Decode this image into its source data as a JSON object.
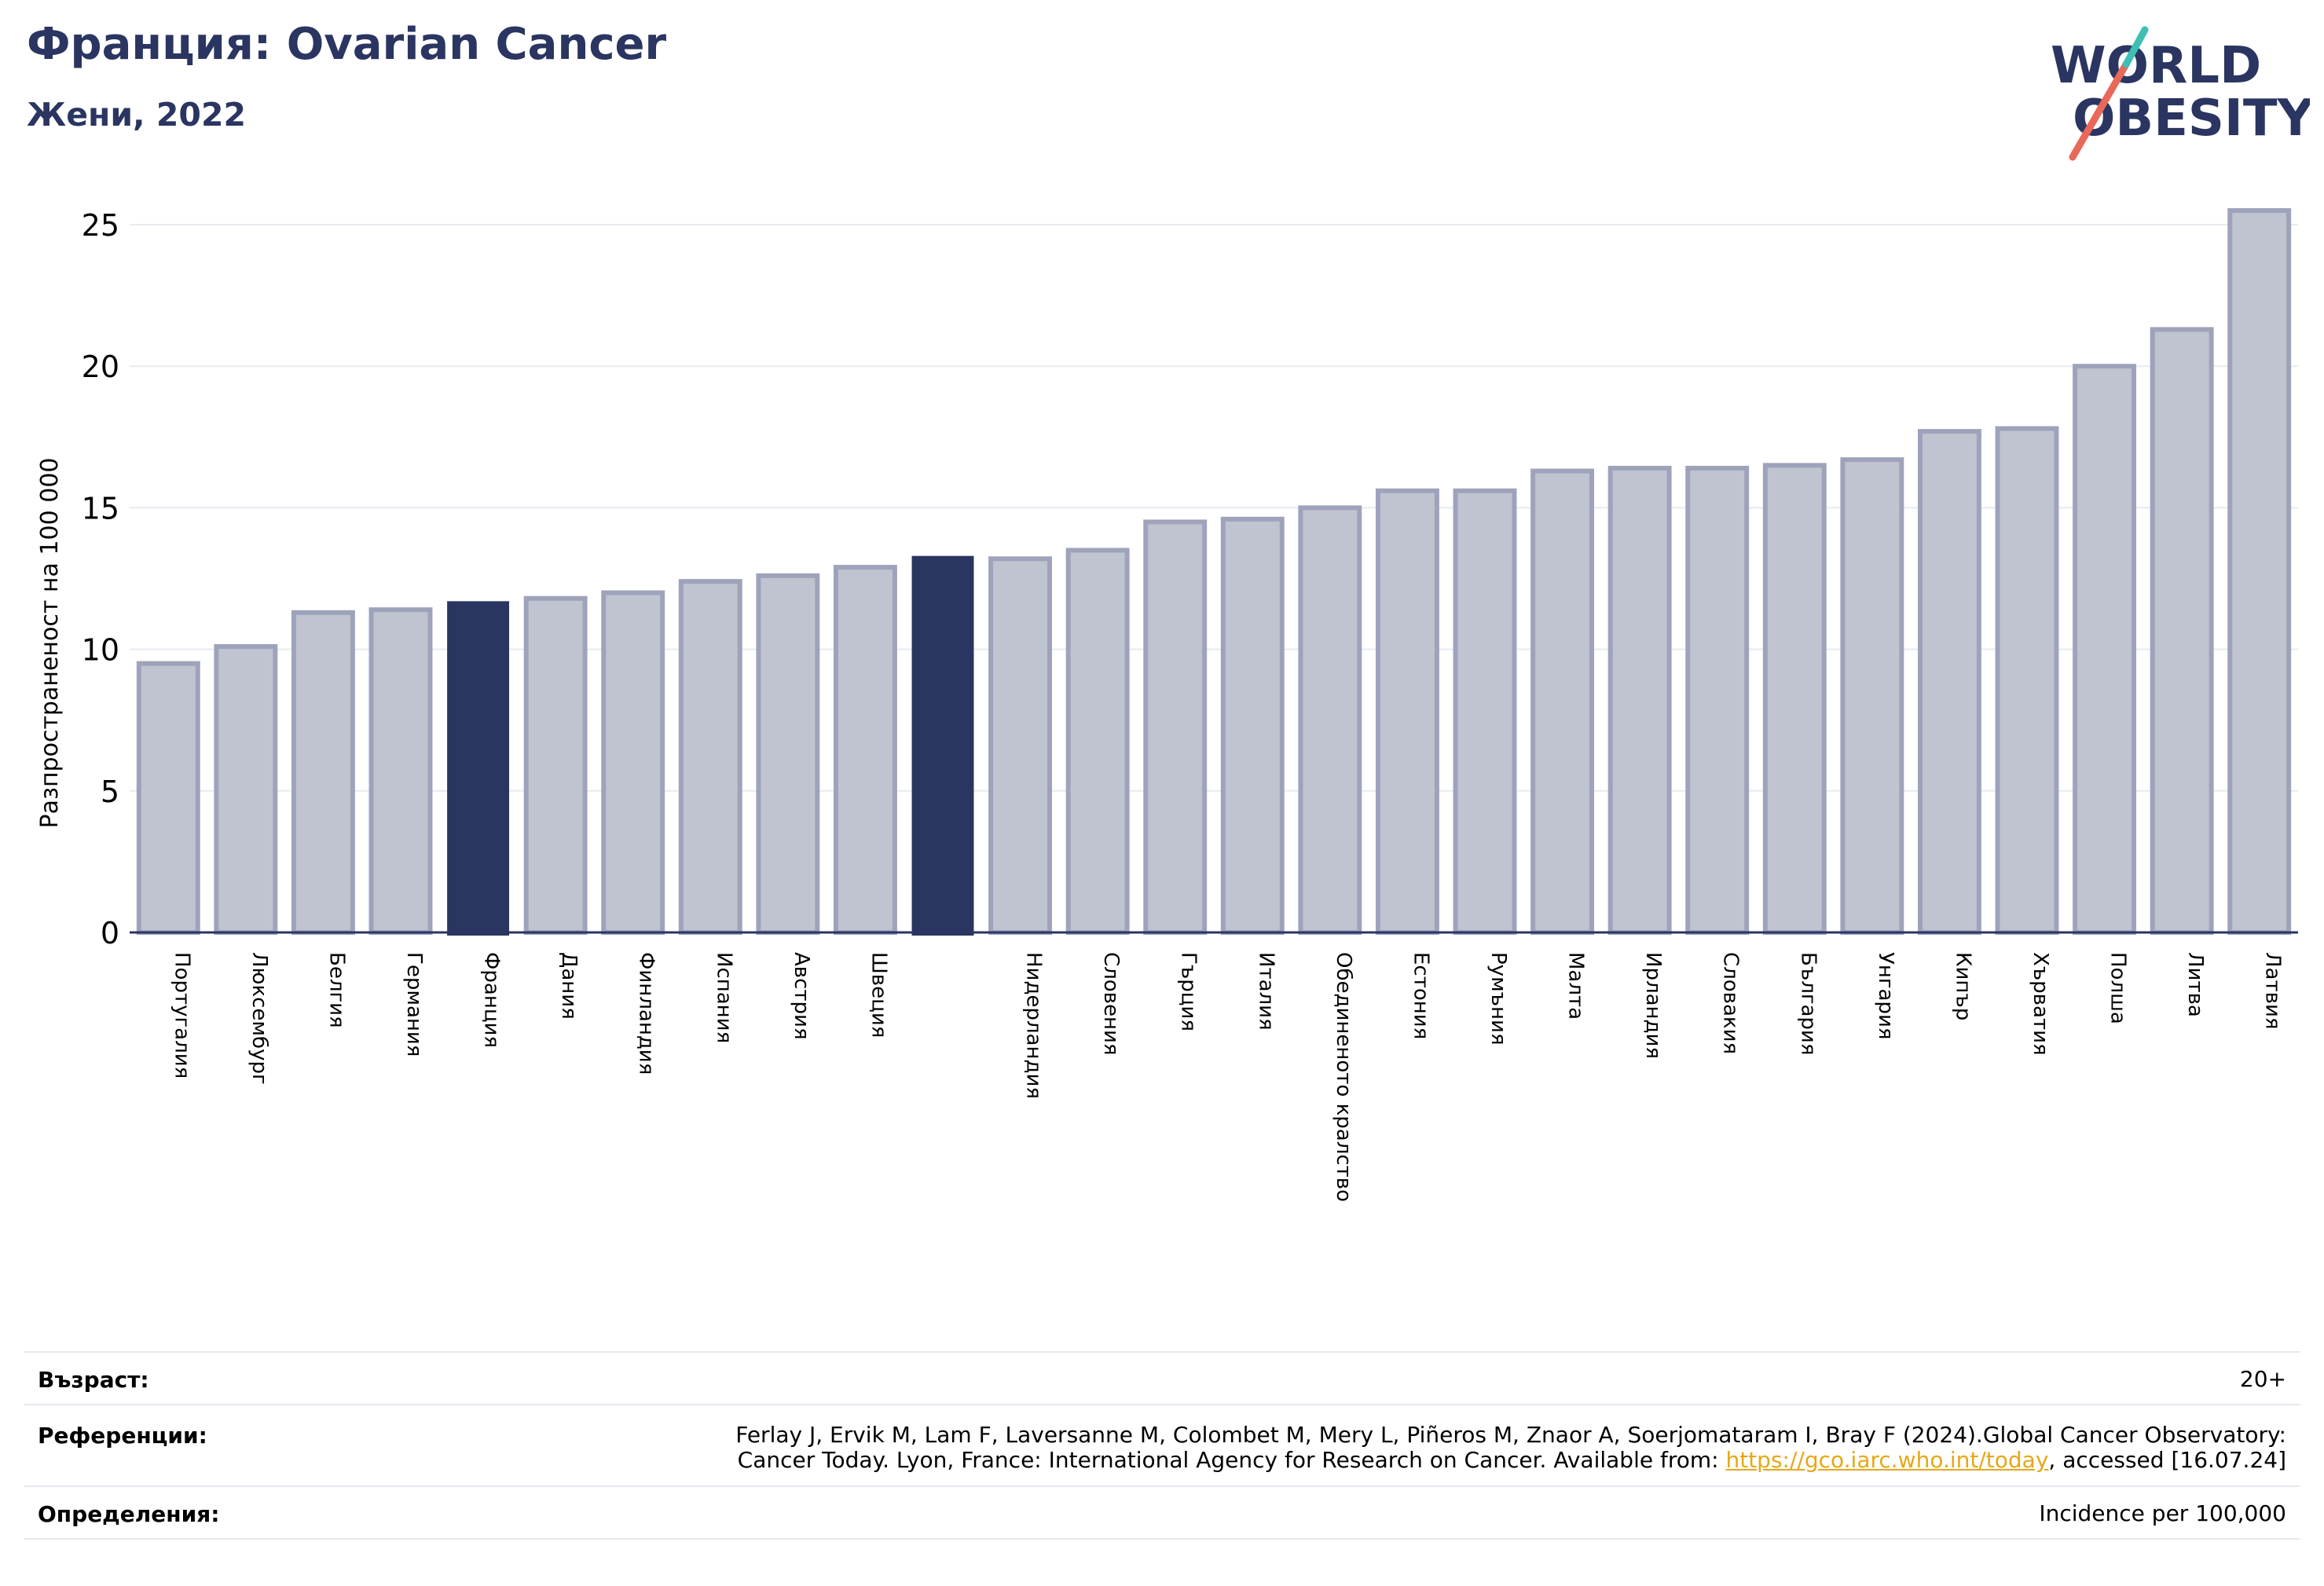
{
  "header": {
    "title": "Франция: Ovarian Cancer",
    "subtitle": "Жени, 2022"
  },
  "logo": {
    "line1": "WORLD",
    "line2": "OBESITY",
    "colors": {
      "text": "#2a3561",
      "slash_red": "#e8685a",
      "slash_teal": "#3dbfb4"
    }
  },
  "chart_data": {
    "type": "bar",
    "title": "Франция: Ovarian Cancer",
    "subtitle": "Жени, 2022",
    "xlabel": "",
    "ylabel": "Разпространеност на 100 000",
    "ylim": [
      0,
      26
    ],
    "yticks": [
      0,
      5,
      10,
      15,
      20,
      25
    ],
    "grid": true,
    "legend": "none",
    "categories": [
      "Португалия",
      "Люксембург",
      "Белгия",
      "Германия",
      "Франция",
      "Дания",
      "Финландия",
      "Испания",
      "Австрия",
      "Швеция",
      "",
      "Нидерландия",
      "Словения",
      "Гърция",
      "Италия",
      "Обединеното кралство",
      "Естония",
      "Румъния",
      "Малта",
      "Ирландия",
      "Словакия",
      "България",
      "Унгария",
      "Кипър",
      "Хърватия",
      "Полша",
      "Литва",
      "Латвия"
    ],
    "values": [
      9.5,
      10.1,
      11.3,
      11.4,
      11.7,
      11.8,
      12.0,
      12.4,
      12.6,
      12.9,
      13.3,
      13.2,
      13.5,
      14.5,
      14.6,
      15.0,
      15.6,
      15.6,
      16.3,
      16.4,
      16.4,
      16.5,
      16.7,
      17.7,
      17.8,
      20.0,
      21.3,
      25.5
    ],
    "highlight_indices": [
      4,
      10
    ],
    "colors": {
      "bar_fill": "#c0c3d0",
      "bar_edge": "#9ea3bb",
      "highlight": "#2a3561",
      "grid": "#e8eaf0",
      "axis": "#2a3561"
    }
  },
  "info": {
    "age_label": "Възраст:",
    "age_value": "20+",
    "references_label": "Референции:",
    "references_line1": "Ferlay J, Ervik M, Lam F, Laversanne M, Colombet M, Mery L, Piñeros M, Znaor A, Soerjomataram I, Bray F (2024).Global Cancer Observatory:",
    "references_line2_before": "Cancer Today. Lyon, France: International Agency for Research on Cancer. Available from: ",
    "references_link": "https://gco.iarc.who.int/today",
    "references_line2_after": ", accessed [16.07.24]",
    "definitions_label": "Определения:",
    "definitions_value": "Incidence per 100,000"
  }
}
